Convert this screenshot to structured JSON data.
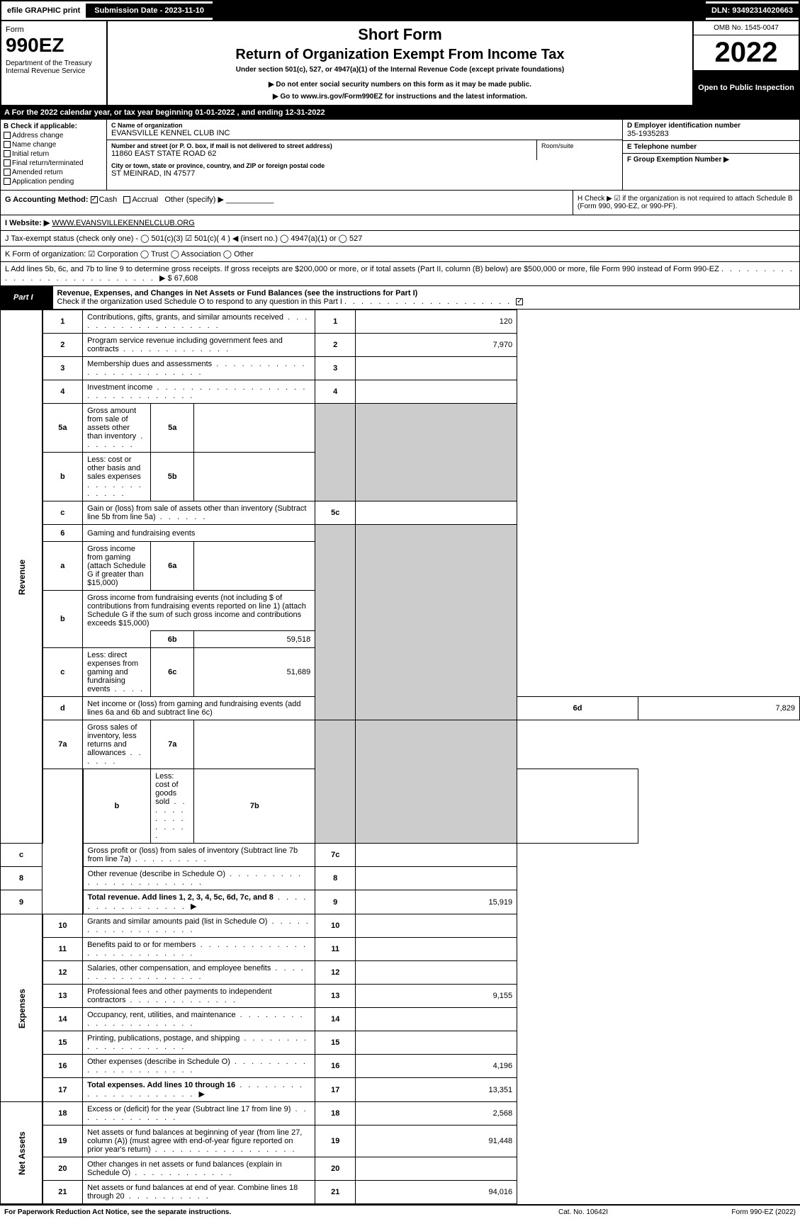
{
  "topbar": {
    "efile": "efile GRAPHIC print",
    "subdate": "Submission Date - 2023-11-10",
    "dln": "DLN: 93492314020663"
  },
  "header": {
    "form": "Form",
    "num": "990EZ",
    "dept": "Department of the Treasury\nInternal Revenue Service",
    "short_form": "Short Form",
    "return": "Return of Organization Exempt From Income Tax",
    "under": "Under section 501(c), 527, or 4947(a)(1) of the Internal Revenue Code (except private foundations)",
    "warn": "▶ Do not enter social security numbers on this form as it may be made public.",
    "goto": "▶ Go to www.irs.gov/Form990EZ for instructions and the latest information.",
    "omb": "OMB No. 1545-0047",
    "year": "2022",
    "open": "Open to Public Inspection"
  },
  "rowA": "A  For the 2022 calendar year, or tax year beginning 01-01-2022 , and ending 12-31-2022",
  "B": {
    "title": "B  Check if applicable:",
    "opts": [
      "Address change",
      "Name change",
      "Initial return",
      "Final return/terminated",
      "Amended return",
      "Application pending"
    ]
  },
  "C": {
    "lbl": "C Name of organization",
    "name": "EVANSVILLE KENNEL CLUB INC",
    "addr_lbl": "Number and street (or P. O. box, if mail is not delivered to street address)",
    "addr": "11860 EAST STATE ROAD 62",
    "room_lbl": "Room/suite",
    "city_lbl": "City or town, state or province, country, and ZIP or foreign postal code",
    "city": "ST MEINRAD, IN  47577"
  },
  "D": {
    "lbl": "D Employer identification number",
    "val": "35-1935283"
  },
  "E": {
    "lbl": "E Telephone number",
    "val": ""
  },
  "F": {
    "lbl": "F Group Exemption Number  ▶",
    "val": ""
  },
  "G": {
    "lbl": "G Accounting Method:",
    "cash": "Cash",
    "accrual": "Accrual",
    "other": "Other (specify) ▶"
  },
  "H": {
    "txt": "H  Check ▶ ☑ if the organization is not required to attach Schedule B (Form 990, 990-EZ, or 990-PF)."
  },
  "I": {
    "lbl": "I Website: ▶",
    "val": "WWW.EVANSVILLEKENNELCLUB.ORG"
  },
  "J": {
    "txt": "J Tax-exempt status (check only one) - ◯ 501(c)(3) ☑ 501(c)( 4 ) ◀ (insert no.) ◯ 4947(a)(1) or ◯ 527"
  },
  "K": {
    "txt": "K Form of organization: ☑ Corporation  ◯ Trust  ◯ Association  ◯ Other"
  },
  "L": {
    "txt": "L Add lines 5b, 6c, and 7b to line 9 to determine gross receipts. If gross receipts are $200,000 or more, or if total assets (Part II, column (B) below) are $500,000 or more, file Form 990 instead of Form 990-EZ",
    "arrow": "▶ $ 67,608"
  },
  "part1": {
    "title": "Part I",
    "heading": "Revenue, Expenses, and Changes in Net Assets or Fund Balances (see the instructions for Part I)",
    "sub": "Check if the organization used Schedule O to respond to any question in this Part I",
    "checked": true
  },
  "lines": {
    "1": {
      "desc": "Contributions, gifts, grants, and similar amounts received",
      "val": "120"
    },
    "2": {
      "desc": "Program service revenue including government fees and contracts",
      "val": "7,970"
    },
    "3": {
      "desc": "Membership dues and assessments",
      "val": ""
    },
    "4": {
      "desc": "Investment income",
      "val": ""
    },
    "5a": {
      "desc": "Gross amount from sale of assets other than inventory",
      "sub": "5a",
      "subval": ""
    },
    "5b": {
      "desc": "Less: cost or other basis and sales expenses",
      "sub": "5b",
      "subval": ""
    },
    "5c": {
      "desc": "Gain or (loss) from sale of assets other than inventory (Subtract line 5b from line 5a)",
      "val": ""
    },
    "6": {
      "desc": "Gaming and fundraising events"
    },
    "6a": {
      "desc": "Gross income from gaming (attach Schedule G if greater than $15,000)",
      "sub": "6a",
      "subval": ""
    },
    "6b": {
      "desc": "Gross income from fundraising events (not including $                    of contributions from fundraising events reported on line 1) (attach Schedule G if the sum of such gross income and contributions exceeds $15,000)",
      "sub": "6b",
      "subval": "59,518"
    },
    "6c": {
      "desc": "Less: direct expenses from gaming and fundraising events",
      "sub": "6c",
      "subval": "51,689"
    },
    "6d": {
      "desc": "Net income or (loss) from gaming and fundraising events (add lines 6a and 6b and subtract line 6c)",
      "val": "7,829"
    },
    "7a": {
      "desc": "Gross sales of inventory, less returns and allowances",
      "sub": "7a",
      "subval": ""
    },
    "7b": {
      "desc": "Less: cost of goods sold",
      "sub": "7b",
      "subval": ""
    },
    "7c": {
      "desc": "Gross profit or (loss) from sales of inventory (Subtract line 7b from line 7a)",
      "val": ""
    },
    "8": {
      "desc": "Other revenue (describe in Schedule O)",
      "val": ""
    },
    "9": {
      "desc": "Total revenue. Add lines 1, 2, 3, 4, 5c, 6d, 7c, and 8",
      "val": "15,919",
      "bold": true
    },
    "10": {
      "desc": "Grants and similar amounts paid (list in Schedule O)",
      "val": ""
    },
    "11": {
      "desc": "Benefits paid to or for members",
      "val": ""
    },
    "12": {
      "desc": "Salaries, other compensation, and employee benefits",
      "val": ""
    },
    "13": {
      "desc": "Professional fees and other payments to independent contractors",
      "val": "9,155"
    },
    "14": {
      "desc": "Occupancy, rent, utilities, and maintenance",
      "val": ""
    },
    "15": {
      "desc": "Printing, publications, postage, and shipping",
      "val": ""
    },
    "16": {
      "desc": "Other expenses (describe in Schedule O)",
      "val": "4,196"
    },
    "17": {
      "desc": "Total expenses. Add lines 10 through 16",
      "val": "13,351",
      "bold": true
    },
    "18": {
      "desc": "Excess or (deficit) for the year (Subtract line 17 from line 9)",
      "val": "2,568"
    },
    "19": {
      "desc": "Net assets or fund balances at beginning of year (from line 27, column (A)) (must agree with end-of-year figure reported on prior year's return)",
      "val": "91,448"
    },
    "20": {
      "desc": "Other changes in net assets or fund balances (explain in Schedule O)",
      "val": ""
    },
    "21": {
      "desc": "Net assets or fund balances at end of year. Combine lines 18 through 20",
      "val": "94,016"
    }
  },
  "sidelabels": {
    "rev": "Revenue",
    "exp": "Expenses",
    "na": "Net Assets"
  },
  "footer": {
    "l": "For Paperwork Reduction Act Notice, see the separate instructions.",
    "m": "Cat. No. 10642I",
    "r": "Form 990-EZ (2022)"
  }
}
